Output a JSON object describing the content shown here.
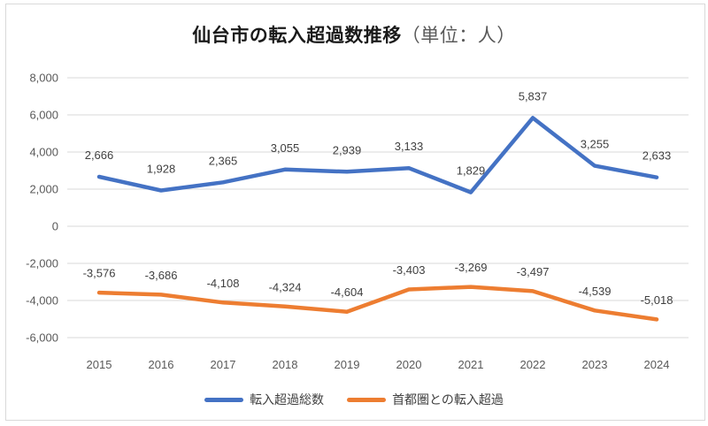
{
  "chart_data": {
    "type": "line",
    "title": "仙台市の転入超過数推移",
    "title_unit": "（単位：人）",
    "categories": [
      "2015",
      "2016",
      "2017",
      "2018",
      "2019",
      "2020",
      "2021",
      "2022",
      "2023",
      "2024"
    ],
    "series": [
      {
        "name": "転入超過総数",
        "color": "#4472C4",
        "values": [
          2666,
          1928,
          2365,
          3055,
          2939,
          3133,
          1829,
          5837,
          3255,
          2633
        ],
        "labels": [
          "2,666",
          "1,928",
          "2,365",
          "3,055",
          "2,939",
          "3,133",
          "1,829",
          "5,837",
          "3,255",
          "2,633"
        ]
      },
      {
        "name": "首都圏との転入超過",
        "color": "#ED7D31",
        "values": [
          -3576,
          -3686,
          -4108,
          -4324,
          -4604,
          -3403,
          -3269,
          -3497,
          -4539,
          -5018
        ],
        "labels": [
          "-3,576",
          "-3,686",
          "-4,108",
          "-4,324",
          "-4,604",
          "-3,403",
          "-3,269",
          "-3,497",
          "-4,539",
          "-5,018"
        ]
      }
    ],
    "y_axis": {
      "min": -6000,
      "max": 8000,
      "step": 2000,
      "tick_labels": [
        "8,000",
        "6,000",
        "4,000",
        "2,000",
        "0",
        "-2,000",
        "-4,000",
        "-6,000"
      ]
    },
    "grid": true,
    "legend_position": "bottom"
  },
  "colors": {
    "grid": "#D9D9D9",
    "frame": "#D9D9D9",
    "axis_text": "#595959",
    "data_label": "#404040",
    "title_main": "#1A1A1A",
    "title_unit": "#595959"
  }
}
